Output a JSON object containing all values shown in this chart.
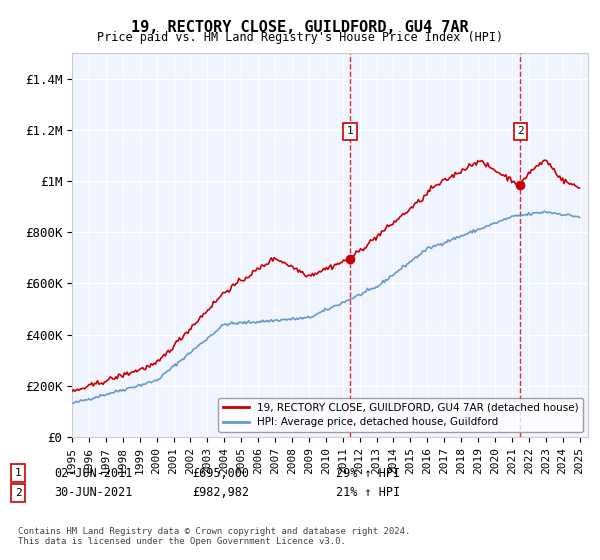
{
  "title": "19, RECTORY CLOSE, GUILDFORD, GU4 7AR",
  "subtitle": "Price paid vs. HM Land Registry's House Price Index (HPI)",
  "ylabel_ticks": [
    "£0",
    "£200K",
    "£400K",
    "£600K",
    "£800K",
    "£1M",
    "£1.2M",
    "£1.4M"
  ],
  "ylabel_values": [
    0,
    200000,
    400000,
    600000,
    800000,
    1000000,
    1200000,
    1400000
  ],
  "ylim": [
    0,
    1500000
  ],
  "xlim_start": 1995,
  "xlim_end": 2025.5,
  "purchase1": {
    "date": 2011.42,
    "price": 695000,
    "label": "1",
    "text": "02-JUN-2011",
    "amount": "£695,000",
    "hpi_pct": "29% ↑ HPI"
  },
  "purchase2": {
    "date": 2021.5,
    "price": 982982,
    "label": "2",
    "text": "30-JUN-2021",
    "amount": "£982,982",
    "hpi_pct": "21% ↑ HPI"
  },
  "legend_line1": "19, RECTORY CLOSE, GUILDFORD, GU4 7AR (detached house)",
  "legend_line2": "HPI: Average price, detached house, Guildford",
  "footnote": "Contains HM Land Registry data © Crown copyright and database right 2024.\nThis data is licensed under the Open Government Licence v3.0.",
  "red_color": "#cc0000",
  "blue_color": "#6699cc",
  "bg_color": "#ddeeff",
  "plot_bg": "#f0f4ff"
}
